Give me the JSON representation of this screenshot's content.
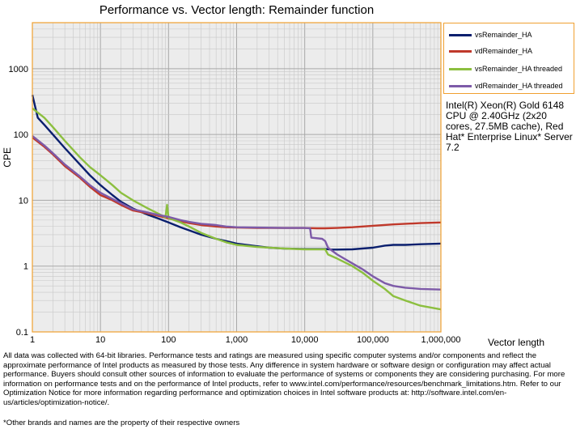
{
  "chart_data": {
    "type": "line",
    "title": "Performance vs. Vector length: Remainder function",
    "xlabel": "Vector length",
    "ylabel": "CPE",
    "x_scale": "log",
    "y_scale": "log",
    "xlim": [
      1,
      1000000
    ],
    "ylim": [
      0.1,
      5000
    ],
    "x_ticks": [
      "1",
      "10",
      "100",
      "1,000",
      "10,000",
      "100,000",
      "1,000,000"
    ],
    "y_ticks": [
      "0.1",
      "1",
      "10",
      "100",
      "1000"
    ],
    "grid": true,
    "legend_position": "top-right",
    "series": [
      {
        "name": "vsRemainder_HA",
        "color": "#0a1f6e",
        "points": [
          [
            1,
            400
          ],
          [
            1.2,
            180
          ],
          [
            1.5,
            140
          ],
          [
            2,
            100
          ],
          [
            3,
            62
          ],
          [
            5,
            35
          ],
          [
            7,
            24
          ],
          [
            10,
            17
          ],
          [
            15,
            12
          ],
          [
            20,
            9.5
          ],
          [
            30,
            7.5
          ],
          [
            50,
            6
          ],
          [
            70,
            5.3
          ],
          [
            100,
            4.6
          ],
          [
            150,
            3.9
          ],
          [
            200,
            3.5
          ],
          [
            300,
            3.0
          ],
          [
            500,
            2.6
          ],
          [
            700,
            2.4
          ],
          [
            1000,
            2.2
          ],
          [
            2000,
            2.0
          ],
          [
            3000,
            1.9
          ],
          [
            5000,
            1.85
          ],
          [
            10000,
            1.82
          ],
          [
            15000,
            1.82
          ],
          [
            20000,
            1.82
          ],
          [
            25000,
            1.78
          ],
          [
            30000,
            1.78
          ],
          [
            50000,
            1.8
          ],
          [
            70000,
            1.85
          ],
          [
            100000,
            1.9
          ],
          [
            150000,
            2.05
          ],
          [
            200000,
            2.1
          ],
          [
            300000,
            2.1
          ],
          [
            500000,
            2.15
          ],
          [
            1000000,
            2.2
          ]
        ]
      },
      {
        "name": "vdRemainder_HA",
        "color": "#c0392b",
        "points": [
          [
            1,
            90
          ],
          [
            1.5,
            65
          ],
          [
            2,
            50
          ],
          [
            3,
            33
          ],
          [
            5,
            22
          ],
          [
            7,
            16
          ],
          [
            10,
            12
          ],
          [
            15,
            10
          ],
          [
            20,
            8.5
          ],
          [
            30,
            7
          ],
          [
            50,
            6.3
          ],
          [
            70,
            5.8
          ],
          [
            100,
            5.3
          ],
          [
            150,
            4.8
          ],
          [
            200,
            4.5
          ],
          [
            300,
            4.2
          ],
          [
            500,
            4.0
          ],
          [
            700,
            3.9
          ],
          [
            1000,
            3.85
          ],
          [
            2000,
            3.8
          ],
          [
            5000,
            3.8
          ],
          [
            10000,
            3.8
          ],
          [
            15000,
            3.75
          ],
          [
            20000,
            3.75
          ],
          [
            30000,
            3.8
          ],
          [
            50000,
            3.9
          ],
          [
            100000,
            4.1
          ],
          [
            200000,
            4.3
          ],
          [
            500000,
            4.5
          ],
          [
            1000000,
            4.6
          ]
        ]
      },
      {
        "name": "vsRemainder_HA threaded",
        "color": "#8cbf3f",
        "points": [
          [
            1,
            250
          ],
          [
            1.5,
            180
          ],
          [
            2,
            130
          ],
          [
            3,
            80
          ],
          [
            5,
            45
          ],
          [
            7,
            32
          ],
          [
            10,
            24
          ],
          [
            15,
            17
          ],
          [
            20,
            13
          ],
          [
            30,
            10
          ],
          [
            50,
            7.5
          ],
          [
            70,
            6.3
          ],
          [
            90,
            5.5
          ],
          [
            95,
            8.5
          ],
          [
            100,
            5.4
          ],
          [
            150,
            4.6
          ],
          [
            200,
            4.0
          ],
          [
            300,
            3.2
          ],
          [
            500,
            2.6
          ],
          [
            700,
            2.3
          ],
          [
            1000,
            2.1
          ],
          [
            2000,
            1.95
          ],
          [
            5000,
            1.85
          ],
          [
            10000,
            1.8
          ],
          [
            15000,
            1.8
          ],
          [
            20000,
            1.8
          ],
          [
            22000,
            1.5
          ],
          [
            30000,
            1.3
          ],
          [
            50000,
            1.0
          ],
          [
            70000,
            0.8
          ],
          [
            100000,
            0.6
          ],
          [
            150000,
            0.45
          ],
          [
            200000,
            0.35
          ],
          [
            300000,
            0.3
          ],
          [
            500000,
            0.25
          ],
          [
            1000000,
            0.22
          ]
        ]
      },
      {
        "name": "vdRemainder_HA threaded",
        "color": "#7d5aa8",
        "points": [
          [
            1,
            95
          ],
          [
            1.5,
            68
          ],
          [
            2,
            52
          ],
          [
            3,
            35
          ],
          [
            5,
            23
          ],
          [
            7,
            17
          ],
          [
            10,
            13
          ],
          [
            15,
            10.5
          ],
          [
            20,
            9
          ],
          [
            30,
            7.3
          ],
          [
            50,
            6.5
          ],
          [
            70,
            6.0
          ],
          [
            100,
            5.6
          ],
          [
            150,
            5.0
          ],
          [
            200,
            4.7
          ],
          [
            300,
            4.4
          ],
          [
            500,
            4.2
          ],
          [
            700,
            4.0
          ],
          [
            1000,
            3.9
          ],
          [
            2000,
            3.85
          ],
          [
            5000,
            3.8
          ],
          [
            10000,
            3.8
          ],
          [
            12000,
            3.75
          ],
          [
            12500,
            2.7
          ],
          [
            18000,
            2.6
          ],
          [
            20000,
            2.4
          ],
          [
            22000,
            1.9
          ],
          [
            30000,
            1.5
          ],
          [
            50000,
            1.1
          ],
          [
            70000,
            0.9
          ],
          [
            100000,
            0.7
          ],
          [
            150000,
            0.55
          ],
          [
            200000,
            0.5
          ],
          [
            300000,
            0.47
          ],
          [
            500000,
            0.45
          ],
          [
            1000000,
            0.44
          ]
        ]
      }
    ]
  },
  "cpu_info": "Intel(R) Xeon(R) Gold 6148 CPU @ 2.40GHz (2x20 cores, 27.5MB cache), Red Hat* Enterprise Linux* Server 7.2",
  "footnote": "All data was collected with 64-bit libraries. Performance tests and ratings are measured using specific computer systems and/or components and reflect the approximate performance of Intel products as measured by those tests. Any difference in system hardware or software design or configuration may affect actual performance. Buyers should consult other sources of information to evaluate the performance of systems or components they are considering purchasing. For more information on performance tests and on the performance of Intel products, refer to www.intel.com/performance/resources/benchmark_limitations.htm. Refer to our Optimization Notice for more information regarding performance and optimization choices in Intel software products at: http://software.intel.com/en-us/articles/optimization-notice/.",
  "brands_note": "*Other brands and names are the property of their respective owners"
}
